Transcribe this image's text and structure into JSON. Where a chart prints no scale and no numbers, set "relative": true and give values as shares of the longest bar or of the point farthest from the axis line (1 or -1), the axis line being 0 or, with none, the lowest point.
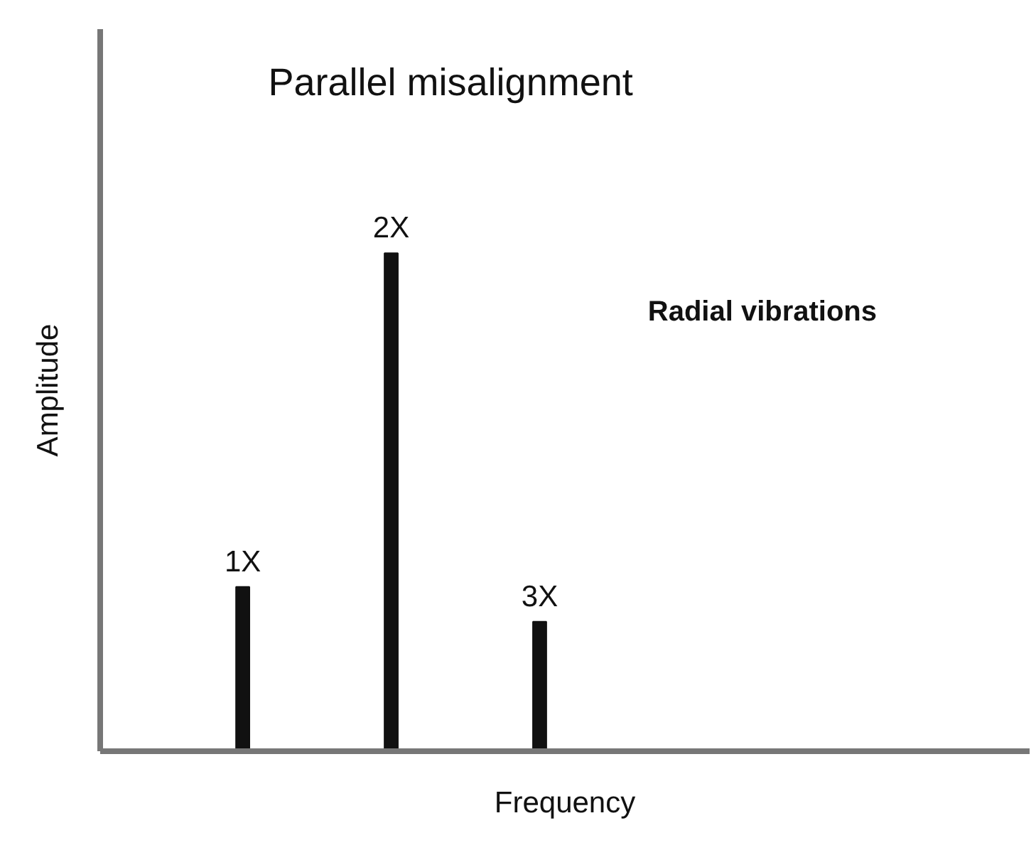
{
  "chart_data": {
    "type": "bar",
    "title": "Parallel misalignment",
    "xlabel": "Frequency",
    "ylabel": "Amplitude",
    "relative": true,
    "categories": [
      "1X",
      "2X",
      "3X"
    ],
    "values": [
      0.33,
      1,
      0.26
    ],
    "color": "#111111",
    "annotations": [
      "Radial vibrations"
    ]
  }
}
